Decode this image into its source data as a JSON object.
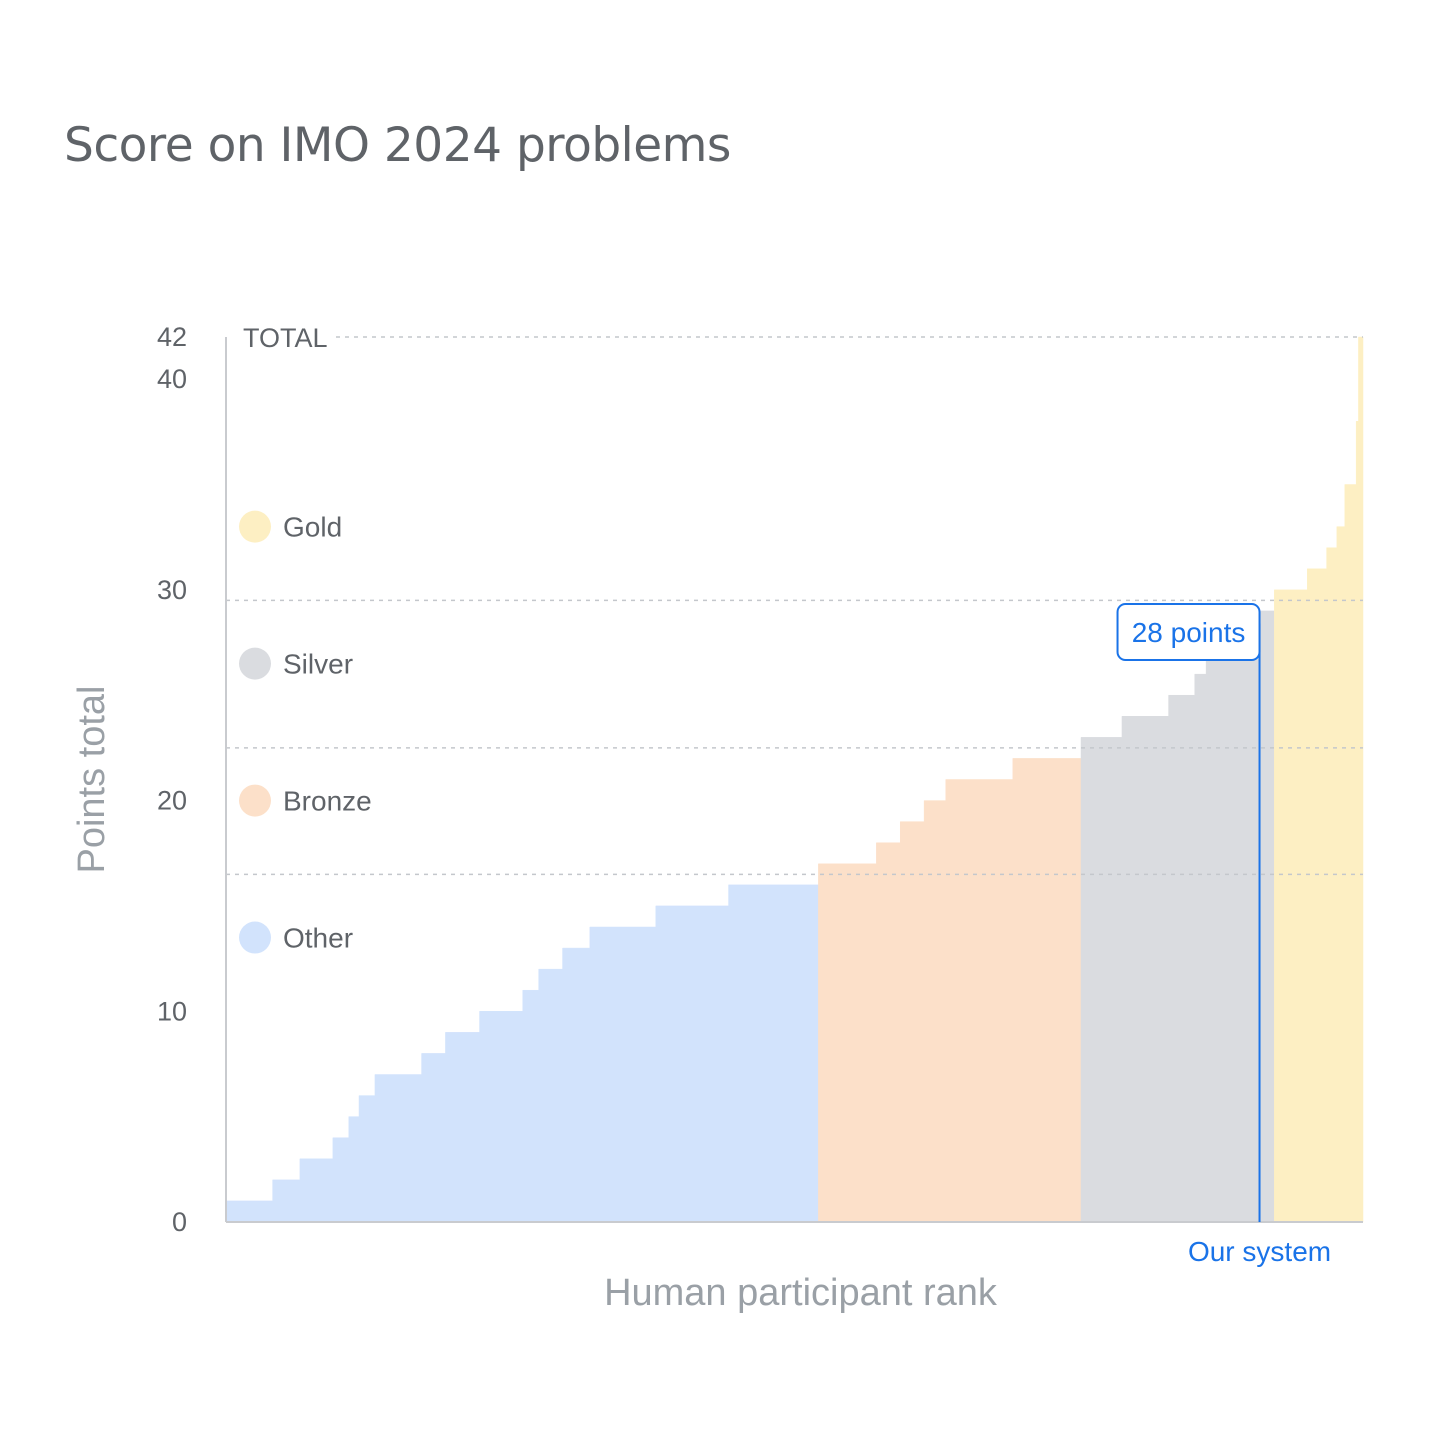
{
  "chart_data": {
    "type": "area",
    "title": "Score on IMO 2024 problems",
    "xlabel": "Human participant rank",
    "ylabel": "Points total",
    "ylim": [
      0,
      42
    ],
    "y_ticks": [
      0,
      10,
      20,
      30,
      40,
      42
    ],
    "top_line_label": "TOTAL",
    "medal_thresholds": [
      {
        "medal": "Bronze",
        "min_points": 16
      },
      {
        "medal": "Silver",
        "min_points": 22
      },
      {
        "medal": "Gold",
        "min_points": 29
      }
    ],
    "legend": [
      {
        "label": "Gold",
        "color": "#fdefc3"
      },
      {
        "label": "Silver",
        "color": "#dadce0"
      },
      {
        "label": "Bronze",
        "color": "#fce0c9"
      },
      {
        "label": "Other",
        "color": "#d2e3fc"
      }
    ],
    "bands": [
      {
        "name": "Other",
        "color": "#d2e3fc",
        "steps": [
          [
            0,
            1
          ],
          [
            0.041,
            2
          ],
          [
            0.065,
            3
          ],
          [
            0.094,
            4
          ],
          [
            0.108,
            5
          ],
          [
            0.117,
            6
          ],
          [
            0.131,
            7
          ],
          [
            0.172,
            8
          ],
          [
            0.193,
            9
          ],
          [
            0.223,
            10
          ],
          [
            0.261,
            11
          ],
          [
            0.275,
            12
          ],
          [
            0.296,
            13
          ],
          [
            0.32,
            14
          ],
          [
            0.378,
            15
          ],
          [
            0.442,
            16
          ],
          [
            0.521,
            16
          ]
        ]
      },
      {
        "name": "Bronze",
        "color": "#fce0c9",
        "steps": [
          [
            0.521,
            17
          ],
          [
            0.572,
            18
          ],
          [
            0.593,
            19
          ],
          [
            0.614,
            20
          ],
          [
            0.633,
            21
          ],
          [
            0.692,
            22
          ],
          [
            0.752,
            22
          ]
        ]
      },
      {
        "name": "Silver",
        "color": "#dadce0",
        "steps": [
          [
            0.752,
            23
          ],
          [
            0.788,
            24
          ],
          [
            0.829,
            25
          ],
          [
            0.852,
            26
          ],
          [
            0.862,
            27
          ],
          [
            0.876,
            28
          ],
          [
            0.9,
            29
          ],
          [
            0.922,
            29
          ]
        ]
      },
      {
        "name": "Gold",
        "color": "#fdefc3",
        "steps": [
          [
            0.922,
            30
          ],
          [
            0.951,
            31
          ],
          [
            0.968,
            32
          ],
          [
            0.977,
            33
          ],
          [
            0.984,
            35
          ],
          [
            0.994,
            38
          ],
          [
            0.996,
            42
          ],
          [
            1.0,
            42
          ]
        ]
      }
    ],
    "our_system": {
      "points": 28,
      "rank_fraction": 0.909,
      "callout_label": "28 points",
      "axis_label": "Our system"
    }
  }
}
